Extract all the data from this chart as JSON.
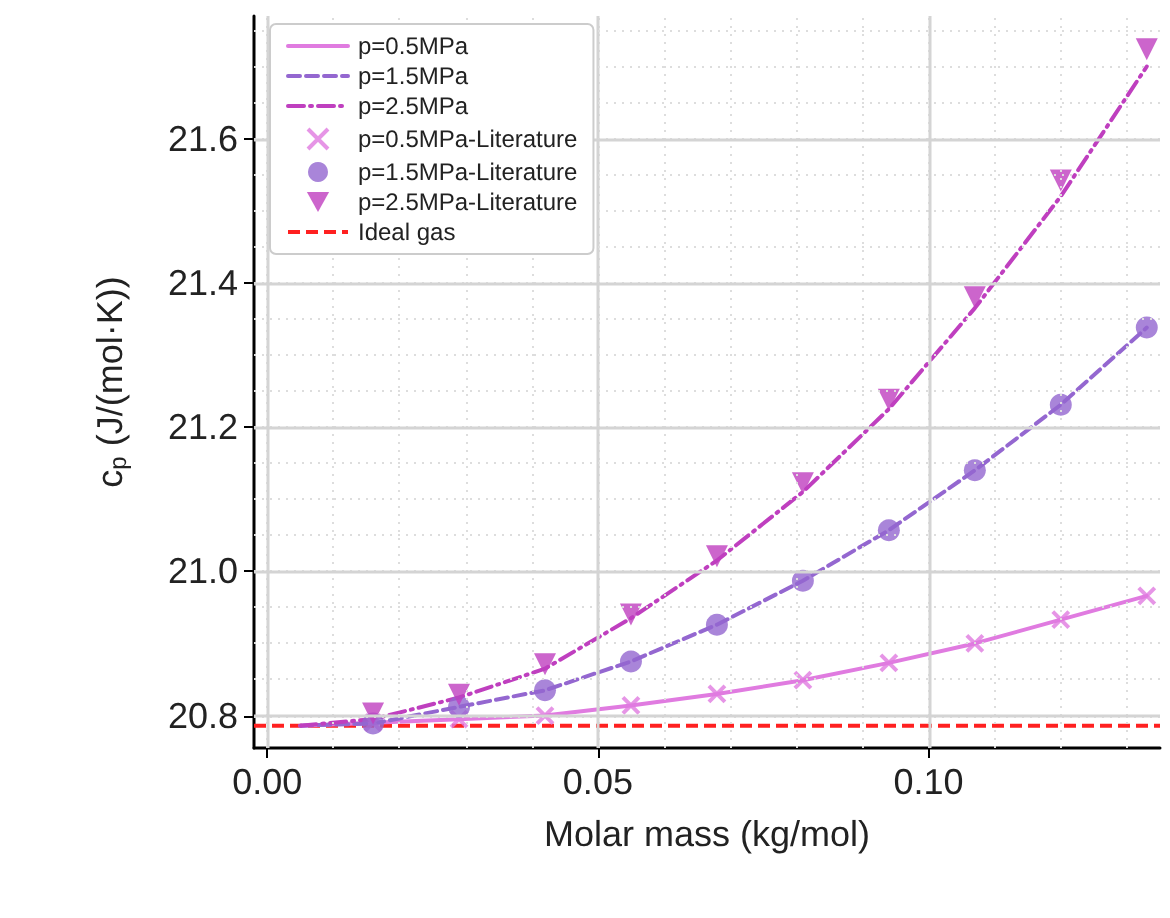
{
  "chart_data": {
    "type": "line",
    "xlabel": "Molar mass (kg/mol)",
    "ylabel": "c$_{p}$ (J/(mol·K))",
    "xlim": [
      -0.002,
      0.135
    ],
    "xticks": [
      {
        "value": 0,
        "label": "0.00"
      },
      0.05,
      {
        "value": 0.1,
        "label": "0.10"
      }
    ],
    "ylim": [
      20.755,
      21.77
    ],
    "yticks": [
      20.8,
      {
        "value": 21,
        "label": "21.0"
      },
      21.2,
      21.4,
      21.6
    ],
    "grid": true,
    "legend": "top left",
    "series": [
      {
        "name": "p=0.5MPa",
        "line_style": "solid",
        "marker": "none",
        "color": "#e07be0",
        "x": [
          0.005,
          0.016,
          0.029,
          0.042,
          0.055,
          0.068,
          0.081,
          0.094,
          0.107,
          0.12,
          0.133
        ],
        "values": [
          20.786,
          20.79,
          20.795,
          20.8,
          20.814,
          20.83,
          20.849,
          20.873,
          20.9,
          20.933,
          20.966
        ]
      },
      {
        "name": "p=1.5MPa",
        "line_style": "dashed",
        "marker": "none",
        "color": "#9467d0",
        "x": [
          0.005,
          0.016,
          0.029,
          0.042,
          0.055,
          0.068,
          0.081,
          0.094,
          0.107,
          0.12,
          0.133
        ],
        "values": [
          20.786,
          20.789,
          20.812,
          20.835,
          20.875,
          20.926,
          20.987,
          21.057,
          21.14,
          21.231,
          21.338
        ]
      },
      {
        "name": "p=2.5MPa",
        "line_style": "dashdot",
        "marker": "none",
        "color": "#bf3fbf",
        "x": [
          0.005,
          0.016,
          0.029,
          0.042,
          0.055,
          0.068,
          0.081,
          0.094,
          0.107,
          0.12,
          0.133
        ],
        "values": [
          20.786,
          20.795,
          20.825,
          20.865,
          20.935,
          21.015,
          21.11,
          21.225,
          21.365,
          21.52,
          21.7
        ]
      },
      {
        "name": "p=0.5MPa-Literature",
        "type": "scatter",
        "marker": "cross",
        "color": "#e07be0",
        "x": [
          0.016,
          0.029,
          0.042,
          0.055,
          0.068,
          0.081,
          0.094,
          0.107,
          0.12,
          0.133
        ],
        "values": [
          20.79,
          20.795,
          20.8,
          20.814,
          20.83,
          20.849,
          20.873,
          20.9,
          20.933,
          20.966
        ]
      },
      {
        "name": "p=1.5MPa-Literature",
        "type": "scatter",
        "marker": "circle",
        "color": "#9467d0",
        "x": [
          0.016,
          0.029,
          0.042,
          0.055,
          0.068,
          0.081,
          0.094,
          0.107,
          0.12,
          0.133
        ],
        "values": [
          20.789,
          20.812,
          20.835,
          20.875,
          20.926,
          20.987,
          21.057,
          21.14,
          21.231,
          21.338
        ]
      },
      {
        "name": "p=2.5MPa-Literature",
        "type": "scatter",
        "marker": "triangle_down",
        "color": "#bf3fbf",
        "x": [
          0.016,
          0.029,
          0.042,
          0.055,
          0.068,
          0.081,
          0.094,
          0.107,
          0.12,
          0.133
        ],
        "values": [
          20.803,
          20.829,
          20.871,
          20.94,
          21.021,
          21.122,
          21.238,
          21.38,
          21.542,
          21.724
        ]
      }
    ],
    "ref_lines": [
      {
        "axis": "y",
        "value": 20.786,
        "label": "Ideal gas",
        "color": "#ff2020",
        "line_style": "dashed"
      }
    ]
  }
}
